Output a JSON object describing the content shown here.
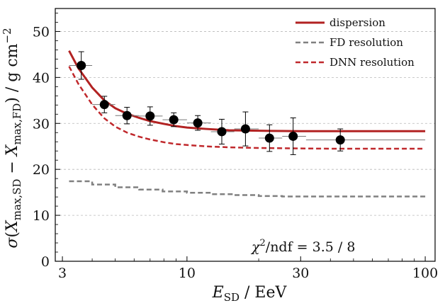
{
  "chart_data": {
    "type": "scatter",
    "x_scale": "log",
    "xlim": [
      2.8,
      110
    ],
    "ylim": [
      0,
      55
    ],
    "xticks": [
      3,
      10,
      30,
      100
    ],
    "xtick_labels": [
      "3",
      "10",
      "30",
      "100"
    ],
    "yticks": [
      0,
      10,
      20,
      30,
      40,
      50
    ],
    "ytick_labels": [
      "0",
      "10",
      "20",
      "30",
      "40",
      "50"
    ],
    "grid": "horizontal dashed",
    "legend_position": "top-right",
    "xlabel": "E_SD / EeV",
    "ylabel": "σ(X_max,SD − X_max,FD) / g cm^−2",
    "annotation": "χ²/ndf = 3.5 / 8",
    "colors": {
      "dispersion": "#b22222",
      "dnn": "#c0282c",
      "fd": "#808080",
      "points": "#000000"
    },
    "series": [
      {
        "name": "data",
        "kind": "points-with-errors",
        "x": [
          3.6,
          4.5,
          5.6,
          7.0,
          8.8,
          11.1,
          14.0,
          17.6,
          22.2,
          27.9,
          44.0
        ],
        "y": [
          42.6,
          34.1,
          31.7,
          31.6,
          30.8,
          30.1,
          28.2,
          28.8,
          26.8,
          27.2,
          26.4
        ],
        "yerr": [
          3.0,
          1.8,
          1.8,
          2.0,
          1.5,
          1.6,
          2.7,
          3.7,
          2.9,
          4.0,
          2.4
        ],
        "xlow": [
          3.2,
          4.0,
          5.0,
          6.3,
          7.9,
          10.0,
          12.6,
          15.8,
          20.0,
          25.1,
          31.6
        ],
        "xhigh": [
          4.0,
          5.0,
          6.3,
          7.9,
          10.0,
          12.6,
          15.8,
          20.0,
          25.1,
          31.6,
          100.0
        ]
      },
      {
        "name": "dispersion",
        "kind": "line-solid",
        "x": [
          3.2,
          3.5,
          4.0,
          4.5,
          5.0,
          5.6,
          6.3,
          7.0,
          8.0,
          9.0,
          10.0,
          12.0,
          15.0,
          20.0,
          25.0,
          30.0,
          40.0,
          60.0,
          100.0
        ],
        "y": [
          45.8,
          42.0,
          37.8,
          35.0,
          33.3,
          32.1,
          31.2,
          30.5,
          29.9,
          29.4,
          29.1,
          28.8,
          28.5,
          28.4,
          28.35,
          28.3,
          28.3,
          28.3,
          28.3
        ]
      },
      {
        "name": "DNN resolution",
        "kind": "line-dashed",
        "x": [
          3.2,
          3.5,
          4.0,
          4.5,
          5.0,
          5.6,
          6.3,
          7.0,
          8.0,
          9.0,
          10.0,
          12.0,
          15.0,
          20.0,
          25.0,
          30.0,
          40.0,
          60.0,
          100.0
        ],
        "y": [
          42.4,
          38.6,
          34.1,
          31.1,
          29.3,
          28.0,
          27.1,
          26.5,
          25.9,
          25.5,
          25.3,
          25.0,
          24.8,
          24.65,
          24.6,
          24.55,
          24.5,
          24.5,
          24.5
        ]
      },
      {
        "name": "FD resolution",
        "kind": "step-dashed",
        "x": [
          3.2,
          4.0,
          4.0,
          5.0,
          5.0,
          6.3,
          6.3,
          7.9,
          7.9,
          10.0,
          10.0,
          12.6,
          12.6,
          15.8,
          15.8,
          20.0,
          20.0,
          25.1,
          25.1,
          31.6,
          31.6,
          100.0
        ],
        "y": [
          17.4,
          17.4,
          16.7,
          16.7,
          16.1,
          16.1,
          15.6,
          15.6,
          15.2,
          15.2,
          14.9,
          14.9,
          14.6,
          14.6,
          14.4,
          14.4,
          14.2,
          14.2,
          14.1,
          14.1,
          14.1,
          14.1
        ]
      }
    ],
    "legend": [
      {
        "label": "dispersion",
        "style": "solid"
      },
      {
        "label": "FD resolution",
        "style": "dashed-grey"
      },
      {
        "label": "DNN resolution",
        "style": "dashed-red"
      }
    ]
  }
}
